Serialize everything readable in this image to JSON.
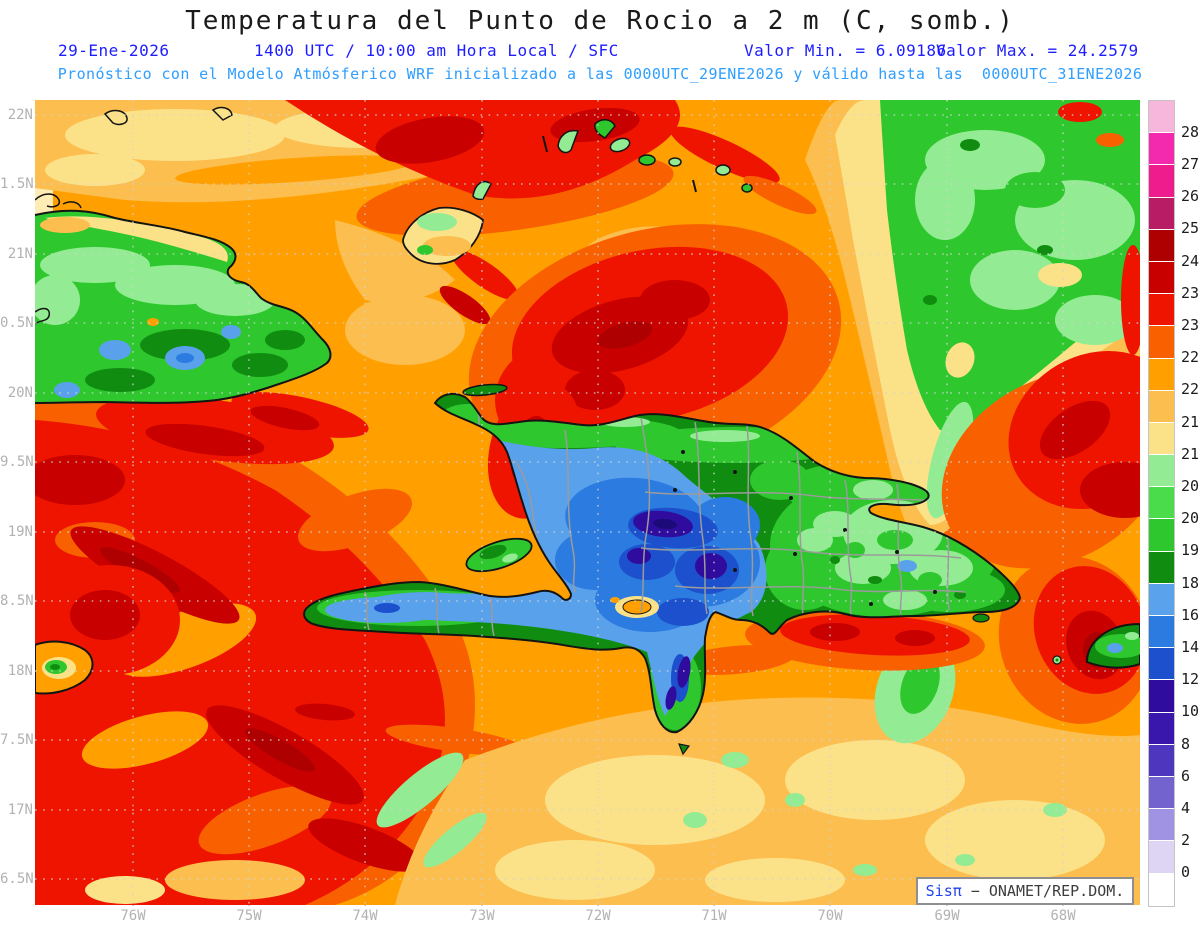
{
  "header": {
    "title": "Temperatura del Punto de Rocio a 2 m (C, somb.)",
    "date": "29-Ene-2026",
    "time_level": "1400 UTC / 10:00 am Hora Local / SFC",
    "value_min_label": "Valor Min. = 6.09186",
    "value_max_label": "Valor Max. = 24.2579",
    "model_line": "Pronóstico con el Modelo Atmósferico WRF inicializado a las 0000UTC_29ENE2026 y válido hasta las  0000UTC_31ENE2026"
  },
  "axes": {
    "lat_labels": [
      "22N",
      "1.5N",
      "21N",
      "0.5N",
      "20N",
      "9.5N",
      "19N",
      "8.5N",
      "18N",
      "7.5N",
      "17N",
      "6.5N"
    ],
    "lon_labels": [
      "76W",
      "75W",
      "74W",
      "73W",
      "72W",
      "71W",
      "70W",
      "69W",
      "68W"
    ]
  },
  "color_scale": {
    "boundary_labels": [
      "28",
      "27",
      "26",
      "25",
      "24.5",
      "23.5",
      "23",
      "22.5",
      "22",
      "21.5",
      "21",
      "20.5",
      "20",
      "19",
      "18",
      "16",
      "14",
      "12",
      "10",
      "8",
      "6",
      "4",
      "2",
      "0"
    ],
    "band_colors_top_to_bottom": [
      "#F7B6DC",
      "#F32AAE",
      "#EE1C8C",
      "#B81C64",
      "#AE0000",
      "#C80000",
      "#EE1400",
      "#F96000",
      "#FFA000",
      "#FCBE4E",
      "#FBE289",
      "#93EC93",
      "#4ADC4A",
      "#2EC72E",
      "#108D10",
      "#5AA2EC",
      "#2B7BE0",
      "#1C50CD",
      "#2F0C9E",
      "#3A17AC",
      "#4E36BE",
      "#7263CF",
      "#A193E3",
      "#DED5F5",
      "#FFFFFF"
    ]
  },
  "watermark": {
    "brand": "Sisπ",
    "text": " − ONAMET/REP.DOM."
  },
  "colors": {
    "title_text": "#1a1a1a",
    "subtitle_text": "#1d1dff",
    "model_text": "#2e9eff",
    "axis_labels": "#b2b2b2",
    "scale_labels": "#1c1c1c",
    "coastline": "#141414",
    "province_border": "#9b9b9b",
    "grid_dots": "#d2d2d2",
    "sea_base": "#FFA000"
  },
  "chart_data": {
    "type": "heatmap",
    "title": "Temperatura del Punto de Rocio a 2 m (C, somb.)",
    "valid_date": "29-Ene-2026",
    "valid_time": "1400 UTC / 10:00 am Hora Local",
    "level": "SFC",
    "model": "WRF",
    "init_time": "0000UTC_29ENE2026",
    "valid_until": "0000UTC_31ENE2026",
    "units": "C",
    "value_min": 6.09186,
    "value_max": 24.2579,
    "lat_ticks": [
      "22N",
      "21.5N",
      "21N",
      "20.5N",
      "20N",
      "19.5N",
      "19N",
      "18.5N",
      "18N",
      "17.5N",
      "17N",
      "16.5N"
    ],
    "lon_ticks": [
      "76W",
      "75W",
      "74W",
      "73W",
      "72W",
      "71W",
      "70W",
      "69W",
      "68W"
    ],
    "contour_levels": [
      0,
      2,
      4,
      6,
      8,
      10,
      12,
      14,
      16,
      18,
      19,
      20,
      20.5,
      21,
      21.5,
      22,
      22.5,
      23,
      23.5,
      24.5,
      25,
      26,
      27,
      28
    ],
    "palette_low_to_high": [
      "#FFFFFF",
      "#DED5F5",
      "#A193E3",
      "#7263CF",
      "#4E36BE",
      "#3A17AC",
      "#2F0C9E",
      "#1C50CD",
      "#2B7BE0",
      "#5AA2EC",
      "#108D10",
      "#2EC72E",
      "#4ADC4A",
      "#93EC93",
      "#FBE289",
      "#FCBE4E",
      "#FFA000",
      "#F96000",
      "#EE1400",
      "#C80000",
      "#AE0000",
      "#B81C64",
      "#EE1C8C",
      "#F32AAE",
      "#F7B6DC"
    ],
    "legend_position": "right",
    "grid": "dotted"
  }
}
